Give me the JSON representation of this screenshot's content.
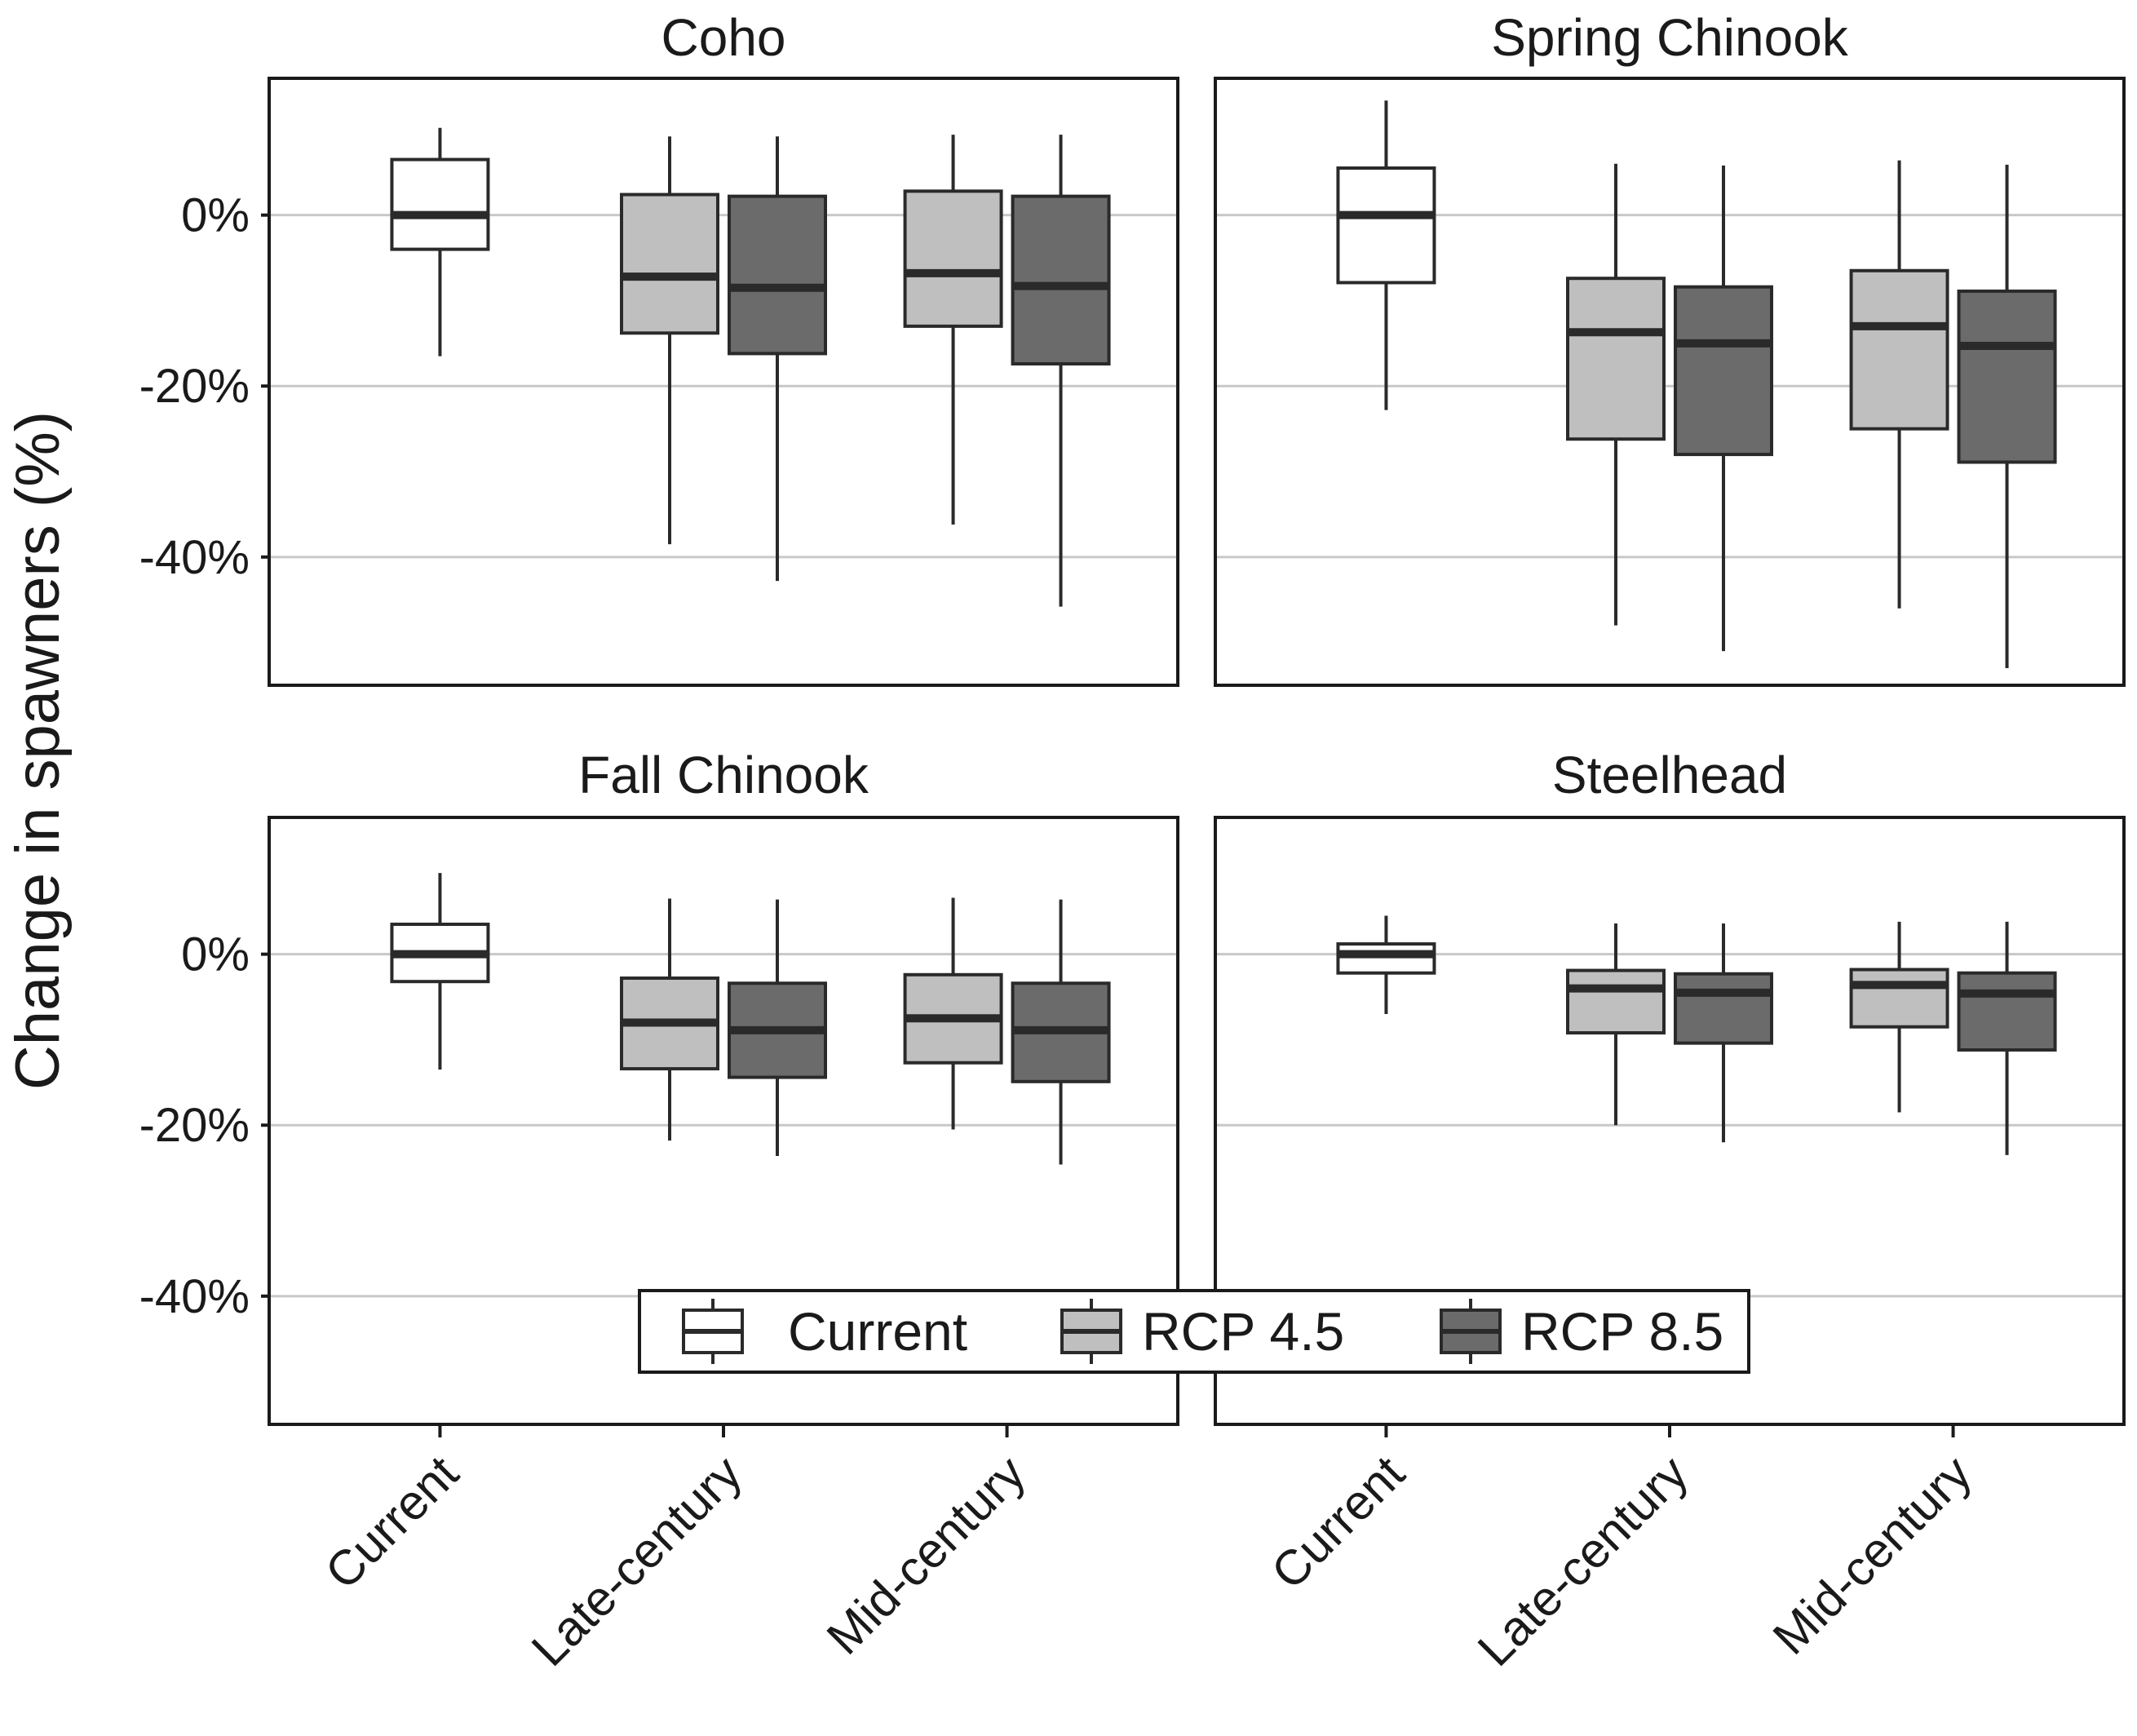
{
  "chart_data": {
    "type": "boxplot",
    "ylabel": "Change in spawners (%)",
    "xlabel": "",
    "ylim": [
      -55,
      16
    ],
    "yticks": [
      0,
      -20,
      -40
    ],
    "ytick_labels": [
      "0%",
      "-20%",
      "-40%"
    ],
    "grid": "horizontal",
    "x_categories": [
      "Current",
      "Late-century",
      "Mid-century"
    ],
    "legend": {
      "placement": "bottom-center",
      "entries": [
        {
          "label": "Current",
          "fill": "#ffffff"
        },
        {
          "label": "RCP 4.5",
          "fill": "#bfbfbf"
        },
        {
          "label": "RCP 8.5",
          "fill": "#6b6b6b"
        }
      ]
    },
    "panels": [
      {
        "title": "Coho",
        "boxes": [
          {
            "category": "Current",
            "series": "Current",
            "whisker_low": -16.5,
            "q1": -4,
            "median": 0,
            "q3": 6.5,
            "whisker_high": 10.2
          },
          {
            "category": "Late-century",
            "series": "RCP 4.5",
            "whisker_low": -38.5,
            "q1": -13.8,
            "median": -7.2,
            "q3": 2.4,
            "whisker_high": 9.2
          },
          {
            "category": "Late-century",
            "series": "RCP 8.5",
            "whisker_low": -42.8,
            "q1": -16.2,
            "median": -8.5,
            "q3": 2.2,
            "whisker_high": 9.2
          },
          {
            "category": "Mid-century",
            "series": "RCP 4.5",
            "whisker_low": -36.2,
            "q1": -13,
            "median": -6.8,
            "q3": 2.8,
            "whisker_high": 9.4
          },
          {
            "category": "Mid-century",
            "series": "RCP 8.5",
            "whisker_low": -45.8,
            "q1": -17.4,
            "median": -8.3,
            "q3": 2.2,
            "whisker_high": 9.4
          }
        ]
      },
      {
        "title": "Spring Chinook",
        "boxes": [
          {
            "category": "Current",
            "series": "Current",
            "whisker_low": -22.8,
            "q1": -7.9,
            "median": 0,
            "q3": 5.5,
            "whisker_high": 13.4
          },
          {
            "category": "Late-century",
            "series": "RCP 4.5",
            "whisker_low": -48,
            "q1": -26.2,
            "median": -13.7,
            "q3": -7.4,
            "whisker_high": 6
          },
          {
            "category": "Late-century",
            "series": "RCP 8.5",
            "whisker_low": -51,
            "q1": -28,
            "median": -15,
            "q3": -8.4,
            "whisker_high": 5.8
          },
          {
            "category": "Mid-century",
            "series": "RCP 4.5",
            "whisker_low": -46,
            "q1": -25,
            "median": -13,
            "q3": -6.5,
            "whisker_high": 6.4
          },
          {
            "category": "Mid-century",
            "series": "RCP 8.5",
            "whisker_low": -53,
            "q1": -28.9,
            "median": -15.3,
            "q3": -8.9,
            "whisker_high": 5.9
          }
        ]
      },
      {
        "title": "Fall Chinook",
        "boxes": [
          {
            "category": "Current",
            "series": "Current",
            "whisker_low": -13.5,
            "q1": -3.2,
            "median": 0,
            "q3": 3.5,
            "whisker_high": 9.5
          },
          {
            "category": "Late-century",
            "series": "RCP 4.5",
            "whisker_low": -21.8,
            "q1": -13.4,
            "median": -8,
            "q3": -2.8,
            "whisker_high": 6.5
          },
          {
            "category": "Late-century",
            "series": "RCP 8.5",
            "whisker_low": -23.6,
            "q1": -14.4,
            "median": -8.9,
            "q3": -3.4,
            "whisker_high": 6.4
          },
          {
            "category": "Mid-century",
            "series": "RCP 4.5",
            "whisker_low": -20.5,
            "q1": -12.7,
            "median": -7.5,
            "q3": -2.4,
            "whisker_high": 6.6
          },
          {
            "category": "Mid-century",
            "series": "RCP 8.5",
            "whisker_low": -24.6,
            "q1": -14.9,
            "median": -8.9,
            "q3": -3.4,
            "whisker_high": 6.4
          }
        ]
      },
      {
        "title": "Steelhead",
        "boxes": [
          {
            "category": "Current",
            "series": "Current",
            "whisker_low": -7,
            "q1": -2.2,
            "median": 0,
            "q3": 1.2,
            "whisker_high": 4.5
          },
          {
            "category": "Late-century",
            "series": "RCP 4.5",
            "whisker_low": -20,
            "q1": -9.2,
            "median": -4,
            "q3": -1.9,
            "whisker_high": 3.6
          },
          {
            "category": "Late-century",
            "series": "RCP 8.5",
            "whisker_low": -22,
            "q1": -10.4,
            "median": -4.5,
            "q3": -2.3,
            "whisker_high": 3.6
          },
          {
            "category": "Mid-century",
            "series": "RCP 4.5",
            "whisker_low": -18.5,
            "q1": -8.5,
            "median": -3.6,
            "q3": -1.8,
            "whisker_high": 3.8
          },
          {
            "category": "Mid-century",
            "series": "RCP 8.5",
            "whisker_low": -23.5,
            "q1": -11.2,
            "median": -4.6,
            "q3": -2.2,
            "whisker_high": 3.8
          }
        ]
      }
    ]
  }
}
